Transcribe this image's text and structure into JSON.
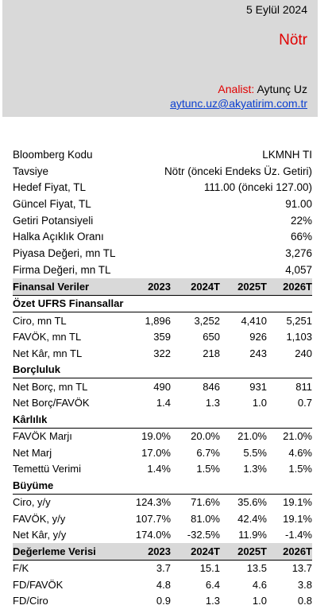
{
  "header": {
    "date": "5 Eylül 2024",
    "rating": "Nötr",
    "analyst_label": "Analist:",
    "analyst_name": "Aytunç Uz",
    "email": "aytunc.uz@akyatirim.com.tr"
  },
  "info": [
    {
      "label": "Bloomberg Kodu",
      "value": "LKMNH TI"
    },
    {
      "label": "Tavsiye",
      "value": "Nötr (önceki Endeks Üz. Getiri)"
    },
    {
      "label": "Hedef Fiyat, TL",
      "value": "111.00 (önceki 127.00)"
    },
    {
      "label": "Güncel Fiyat, TL",
      "value": "91.00"
    },
    {
      "label": "Getiri Potansiyeli",
      "value": "22%"
    },
    {
      "label": "Halka Açıklık Oranı",
      "value": "66%"
    },
    {
      "label": "Piyasa Değeri, mn TL",
      "value": "3,276"
    },
    {
      "label": "Firma Değeri, mn TL",
      "value": "4,057"
    }
  ],
  "financials": {
    "header": {
      "label": "Finansal Veriler",
      "cols": [
        "2023",
        "2024T",
        "2025T",
        "2026T"
      ]
    },
    "sections": [
      {
        "title": "Özet UFRS Finansallar",
        "rows": [
          {
            "label": "Ciro, mn TL",
            "values": [
              "1,896",
              "3,252",
              "4,410",
              "5,251"
            ]
          },
          {
            "label": "FAVÖK, mn TL",
            "values": [
              "359",
              "650",
              "926",
              "1,103"
            ]
          },
          {
            "label": "Net Kâr, mn TL",
            "values": [
              "322",
              "218",
              "243",
              "240"
            ]
          }
        ]
      },
      {
        "title": "Borçluluk",
        "rows": [
          {
            "label": "Net Borç, mn TL",
            "values": [
              "490",
              "846",
              "931",
              "811"
            ]
          },
          {
            "label": "Net Borç/FAVÖK",
            "values": [
              "1.4",
              "1.3",
              "1.0",
              "0.7"
            ]
          }
        ]
      },
      {
        "title": "Kârlılık",
        "rows": [
          {
            "label": "FAVÖK Marjı",
            "values": [
              "19.0%",
              "20.0%",
              "21.0%",
              "21.0%"
            ]
          },
          {
            "label": "Net Marj",
            "values": [
              "17.0%",
              "6.7%",
              "5.5%",
              "4.6%"
            ]
          },
          {
            "label": "Temettü Verimi",
            "values": [
              "1.4%",
              "1.5%",
              "1.3%",
              "1.5%"
            ]
          }
        ]
      },
      {
        "title": "Büyüme",
        "rows": [
          {
            "label": "Ciro, y/y",
            "values": [
              "124.3%",
              "71.6%",
              "35.6%",
              "19.1%"
            ]
          },
          {
            "label": "FAVÖK, y/y",
            "values": [
              "107.7%",
              "81.0%",
              "42.4%",
              "19.1%"
            ]
          },
          {
            "label": "Net Kâr, y/y",
            "values": [
              "174.0%",
              "-32.5%",
              "11.9%",
              "-1.4%"
            ]
          }
        ]
      }
    ],
    "valuation": {
      "header": {
        "label": "Değerleme Verisi",
        "cols": [
          "2023",
          "2024T",
          "2025T",
          "2026T"
        ]
      },
      "rows": [
        {
          "label": "F/K",
          "values": [
            "3.7",
            "15.1",
            "13.5",
            "13.7"
          ]
        },
        {
          "label": "FD/FAVÖK",
          "values": [
            "4.8",
            "6.4",
            "4.6",
            "3.8"
          ]
        },
        {
          "label": "FD/Ciro",
          "values": [
            "0.9",
            "1.3",
            "1.0",
            "0.8"
          ]
        }
      ]
    }
  }
}
